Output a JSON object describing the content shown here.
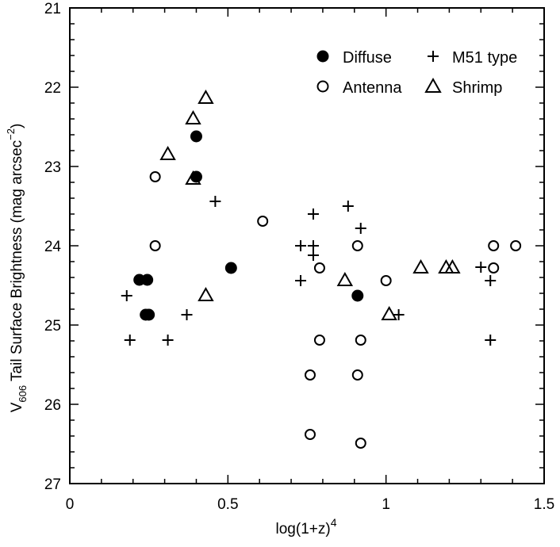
{
  "chart_data": {
    "type": "scatter",
    "title": "",
    "xlabel_base": "log(1+z)",
    "xlabel_sup": "4",
    "ylabel_main": "V",
    "ylabel_sub": "606",
    "ylabel_rest": " Tail Surface Brightness (mag arcsec",
    "ylabel_sup": "−2",
    "ylabel_close": ")",
    "xlim": [
      0,
      1.5
    ],
    "ylim": [
      27,
      21
    ],
    "y_inverted": true,
    "xticks": [
      {
        "v": 0,
        "label": "0"
      },
      {
        "v": 0.5,
        "label": "0.5"
      },
      {
        "v": 1,
        "label": "1"
      },
      {
        "v": 1.5,
        "label": "1.5"
      }
    ],
    "yticks": [
      {
        "v": 21,
        "label": "21"
      },
      {
        "v": 22,
        "label": "22"
      },
      {
        "v": 23,
        "label": "23"
      },
      {
        "v": 24,
        "label": "24"
      },
      {
        "v": 25,
        "label": "25"
      },
      {
        "v": 26,
        "label": "26"
      },
      {
        "v": 27,
        "label": "27"
      }
    ],
    "legend_position": "top-right",
    "series": [
      {
        "name": "Diffuse",
        "marker": "filled-circle",
        "points": [
          [
            0.22,
            24.43
          ],
          [
            0.245,
            24.43
          ],
          [
            0.24,
            24.87
          ],
          [
            0.25,
            24.87
          ],
          [
            0.4,
            22.62
          ],
          [
            0.4,
            23.13
          ],
          [
            0.51,
            24.28
          ],
          [
            0.91,
            24.63
          ]
        ]
      },
      {
        "name": "M51 type",
        "marker": "plus",
        "points": [
          [
            0.18,
            24.63
          ],
          [
            0.19,
            25.19
          ],
          [
            0.31,
            25.19
          ],
          [
            0.37,
            24.87
          ],
          [
            0.46,
            23.44
          ],
          [
            0.73,
            24.0
          ],
          [
            0.73,
            24.44
          ],
          [
            0.77,
            23.6
          ],
          [
            0.77,
            24.0
          ],
          [
            0.77,
            24.12
          ],
          [
            0.88,
            23.5
          ],
          [
            0.92,
            23.78
          ],
          [
            1.04,
            24.87
          ],
          [
            1.3,
            24.27
          ],
          [
            1.33,
            24.44
          ],
          [
            1.33,
            25.19
          ]
        ]
      },
      {
        "name": "Antenna",
        "marker": "open-circle",
        "points": [
          [
            0.27,
            23.13
          ],
          [
            0.27,
            24.0
          ],
          [
            0.61,
            23.69
          ],
          [
            0.76,
            25.63
          ],
          [
            0.76,
            26.38
          ],
          [
            0.79,
            24.28
          ],
          [
            0.79,
            25.19
          ],
          [
            0.91,
            24.0
          ],
          [
            0.92,
            25.19
          ],
          [
            0.91,
            25.63
          ],
          [
            0.92,
            26.49
          ],
          [
            1.0,
            24.44
          ],
          [
            1.34,
            24.0
          ],
          [
            1.34,
            24.28
          ],
          [
            1.41,
            24.0
          ]
        ]
      },
      {
        "name": "Shrimp",
        "marker": "open-triangle",
        "points": [
          [
            0.31,
            22.85
          ],
          [
            0.39,
            22.4
          ],
          [
            0.43,
            22.14
          ],
          [
            0.39,
            23.16
          ],
          [
            0.43,
            24.63
          ],
          [
            0.87,
            24.44
          ],
          [
            1.01,
            24.87
          ],
          [
            1.11,
            24.28
          ],
          [
            1.19,
            24.28
          ],
          [
            1.21,
            24.28
          ]
        ]
      }
    ]
  }
}
